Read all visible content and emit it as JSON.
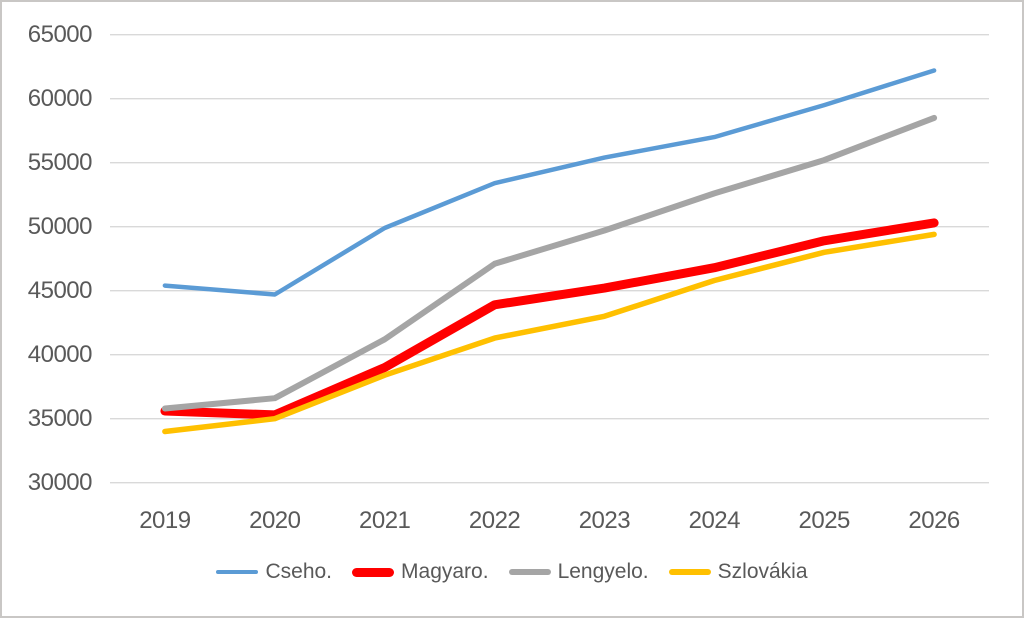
{
  "chart_data": {
    "type": "line",
    "title": "",
    "xlabel": "",
    "ylabel": "",
    "categories": [
      "2019",
      "2020",
      "2021",
      "2022",
      "2023",
      "2024",
      "2025",
      "2026"
    ],
    "series": [
      {
        "name": "Cseho.",
        "color": "#5B9BD5",
        "stroke_width": 4.5,
        "values": [
          45400,
          44700,
          49900,
          53400,
          55400,
          57000,
          59500,
          62200
        ]
      },
      {
        "name": "Magyaro.",
        "color": "#FF0000",
        "stroke_width": 9,
        "values": [
          35600,
          35300,
          39000,
          43900,
          45200,
          46800,
          48900,
          50300
        ]
      },
      {
        "name": "Lengyelo.",
        "color": "#A5A5A5",
        "stroke_width": 6,
        "values": [
          35800,
          36600,
          41200,
          47100,
          49700,
          52600,
          55200,
          58500
        ]
      },
      {
        "name": "Szlovákia",
        "color": "#FFC000",
        "stroke_width": 5.5,
        "values": [
          34000,
          35000,
          38400,
          41300,
          43000,
          45800,
          48000,
          49400
        ]
      }
    ],
    "ylim": [
      30000,
      65000
    ],
    "yticks": [
      65000,
      60000,
      55000,
      50000,
      45000,
      40000,
      35000,
      30000
    ],
    "grid": true,
    "legend_position": "bottom",
    "text_color": "#595959",
    "gridline_color": "#D9D9D9"
  }
}
